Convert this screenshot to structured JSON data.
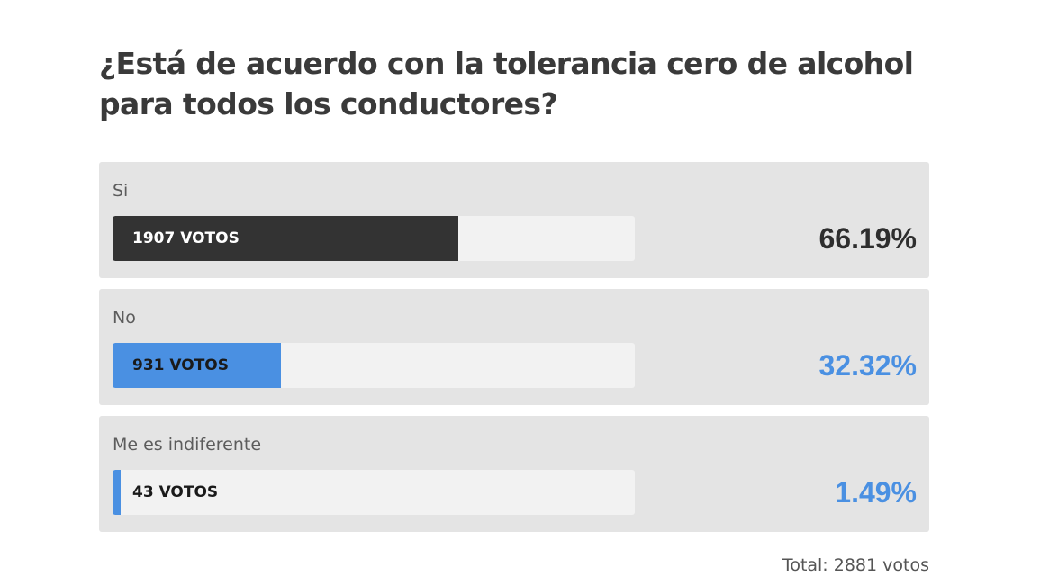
{
  "poll": {
    "question": "¿Está de acuerdo con la tolerancia cero de alcohol para todos los conductores?",
    "options": [
      {
        "label": "Si",
        "votes_text": "1907 VOTOS",
        "votes": 1907,
        "percent_text": "66.19%",
        "fraction": 0.6619,
        "bar_color": "#333333",
        "votes_text_color": "#ffffff",
        "percent_color": "#2e2e2e"
      },
      {
        "label": "No",
        "votes_text": "931 VOTOS",
        "votes": 931,
        "percent_text": "32.32%",
        "fraction": 0.3232,
        "bar_color": "#4a90e2",
        "votes_text_color": "#1a1a1a",
        "percent_color": "#4a90e2"
      },
      {
        "label": "Me es indiferente",
        "votes_text": "43 VOTOS",
        "votes": 43,
        "percent_text": "1.49%",
        "fraction": 0.0149,
        "bar_color": "#4a90e2",
        "votes_text_color": "#1a1a1a",
        "percent_color": "#4a90e2"
      }
    ],
    "total_text": "Total: 2881 votos"
  }
}
